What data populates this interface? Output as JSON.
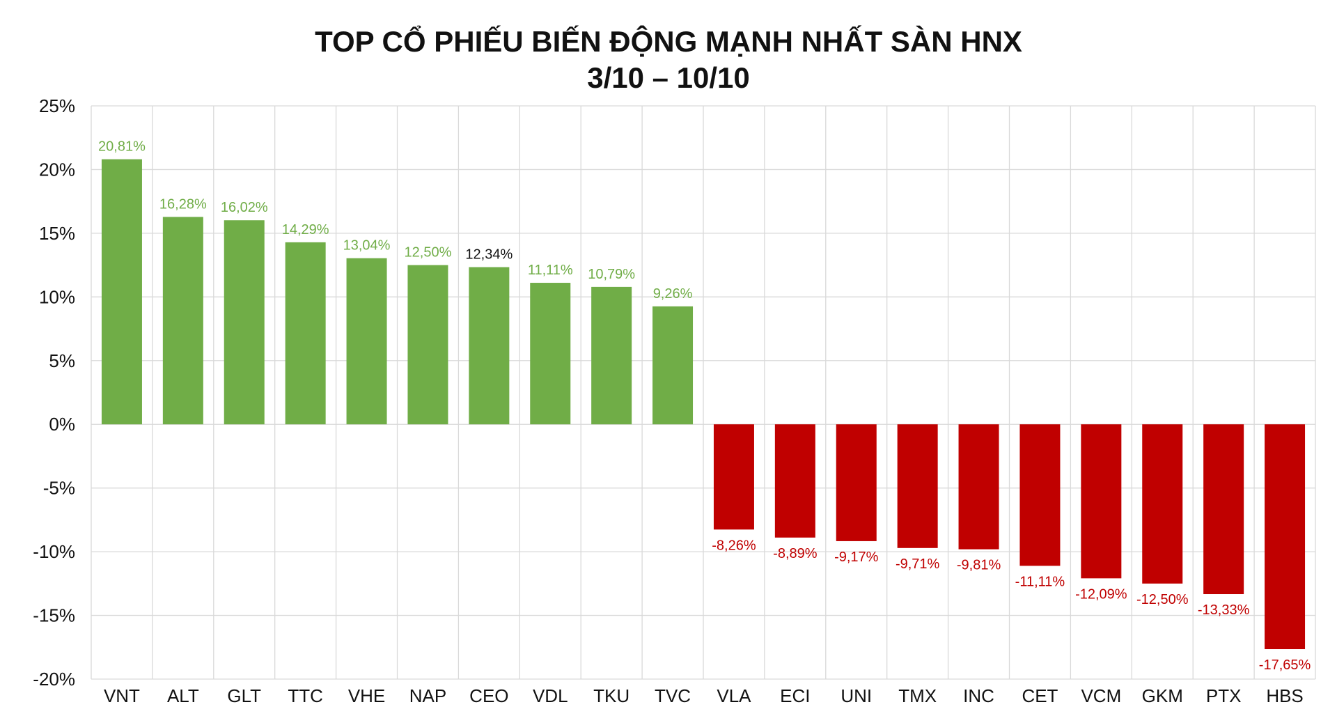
{
  "chart_data": {
    "type": "bar",
    "title": "TOP CỔ PHIẾU BIẾN ĐỘNG MẠNH NHẤT SÀN HNX",
    "subtitle": "3/10 – 10/10",
    "xlabel": "",
    "ylabel": "",
    "ylim": [
      -20,
      25
    ],
    "yticks": [
      25,
      20,
      15,
      10,
      5,
      0,
      -5,
      -10,
      -15,
      -20
    ],
    "ytick_labels": [
      "25%",
      "20%",
      "15%",
      "10%",
      "5%",
      "0%",
      "-5%",
      "-10%",
      "-15%",
      "-20%"
    ],
    "grid": true,
    "legend": "none",
    "categories": [
      "VNT",
      "ALT",
      "GLT",
      "TTC",
      "VHE",
      "NAP",
      "CEO",
      "VDL",
      "TKU",
      "TVC",
      "VLA",
      "ECI",
      "UNI",
      "TMX",
      "INC",
      "CET",
      "VCM",
      "GKM",
      "PTX",
      "HBS"
    ],
    "values": [
      20.81,
      16.28,
      16.02,
      14.29,
      13.04,
      12.5,
      12.34,
      11.11,
      10.79,
      9.26,
      -8.26,
      -8.89,
      -9.17,
      -9.71,
      -9.81,
      -11.11,
      -12.09,
      -12.5,
      -13.33,
      -17.65
    ],
    "data_labels": [
      "20,81%",
      "16,28%",
      "16,02%",
      "14,29%",
      "13,04%",
      "12,50%",
      "12,34%",
      "11,11%",
      "10,79%",
      "9,26%",
      "-8,26%",
      "-8,89%",
      "-9,17%",
      "-9,71%",
      "-9,81%",
      "-11,11%",
      "-12,09%",
      "-12,50%",
      "-13,33%",
      "-17,65%"
    ],
    "colors": {
      "positive": "#70AD47",
      "negative": "#C00000",
      "positive_label": "#70AD47",
      "negative_label": "#C00000",
      "highlight_label": "#111111",
      "grid": "#D9D9D9"
    },
    "label_color_overrides": {
      "CEO": "#111111"
    }
  }
}
